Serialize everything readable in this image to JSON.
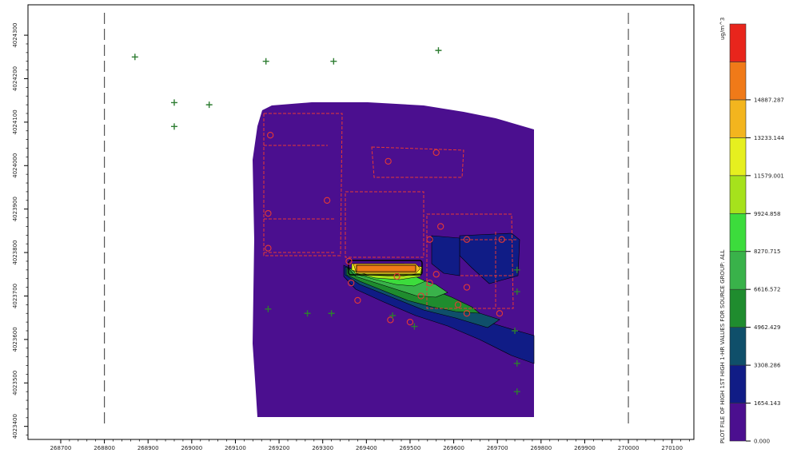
{
  "chart_data": {
    "type": "heatmap",
    "title": "PLOT FILE OF  HIGH 1ST HIGH  1-HR VALUES FOR SOURCE GROUP: ALL",
    "units": "ug/m^3",
    "x_ticks": [
      "268700",
      "268800",
      "268900",
      "269000",
      "269100",
      "269200",
      "269300",
      "269400",
      "269500",
      "269600",
      "269700",
      "269800",
      "269900",
      "270000",
      "270100"
    ],
    "y_ticks": [
      "4024300",
      "4024200",
      "4024100",
      "4024000",
      "4023900",
      "4023800",
      "4023700",
      "4023600",
      "4023500",
      "4023400"
    ],
    "xlim": [
      268625,
      270150
    ],
    "ylim": [
      4023370,
      4024370
    ],
    "dashed_x": [
      268800,
      270000
    ],
    "legend_levels": [
      "0.000",
      "1654.143",
      "3308.286",
      "4962.429",
      "6616.572",
      "8270.715",
      "9924.858",
      "11579.001",
      "13233.144",
      "14887.287"
    ],
    "legend_colors": [
      "#4b0f8f",
      "#101c86",
      "#0f4f6a",
      "#1f8c2e",
      "#39b24a",
      "#3cdc3c",
      "#a6e21c",
      "#e6ef1f",
      "#f3b51e",
      "#f07a18",
      "#e8251c"
    ],
    "receptors": [
      {
        "x": 268870,
        "y": 4024250
      },
      {
        "x": 268960,
        "y": 4024145
      },
      {
        "x": 268960,
        "y": 4024090
      },
      {
        "x": 269040,
        "y": 4024140
      },
      {
        "x": 269170,
        "y": 4024240
      },
      {
        "x": 269325,
        "y": 4024240
      },
      {
        "x": 269565,
        "y": 4024265
      },
      {
        "x": 269175,
        "y": 4023670
      },
      {
        "x": 269265,
        "y": 4023660
      },
      {
        "x": 269320,
        "y": 4023660
      },
      {
        "x": 269460,
        "y": 4023655
      },
      {
        "x": 269510,
        "y": 4023630
      },
      {
        "x": 269745,
        "y": 4023760
      },
      {
        "x": 269745,
        "y": 4023710
      },
      {
        "x": 269740,
        "y": 4023620
      },
      {
        "x": 269745,
        "y": 4023545
      },
      {
        "x": 269745,
        "y": 4023480
      }
    ],
    "sources": [
      {
        "x": 269180,
        "y": 4024070
      },
      {
        "x": 269175,
        "y": 4023890
      },
      {
        "x": 269175,
        "y": 4023810
      },
      {
        "x": 269310,
        "y": 4023920
      },
      {
        "x": 269450,
        "y": 4024010
      },
      {
        "x": 269560,
        "y": 4024030
      },
      {
        "x": 269360,
        "y": 4023780
      },
      {
        "x": 269365,
        "y": 4023730
      },
      {
        "x": 269380,
        "y": 4023690
      },
      {
        "x": 269470,
        "y": 4023745
      },
      {
        "x": 269545,
        "y": 4023830
      },
      {
        "x": 269560,
        "y": 4023750
      },
      {
        "x": 269570,
        "y": 4023860
      },
      {
        "x": 269630,
        "y": 4023830
      },
      {
        "x": 269710,
        "y": 4023830
      },
      {
        "x": 269630,
        "y": 4023720
      },
      {
        "x": 269630,
        "y": 4023660
      },
      {
        "x": 269705,
        "y": 4023660
      },
      {
        "x": 269500,
        "y": 4023640
      },
      {
        "x": 269455,
        "y": 4023645
      },
      {
        "x": 269525,
        "y": 4023700
      },
      {
        "x": 269545,
        "y": 4023730
      },
      {
        "x": 269610,
        "y": 4023680
      }
    ]
  }
}
